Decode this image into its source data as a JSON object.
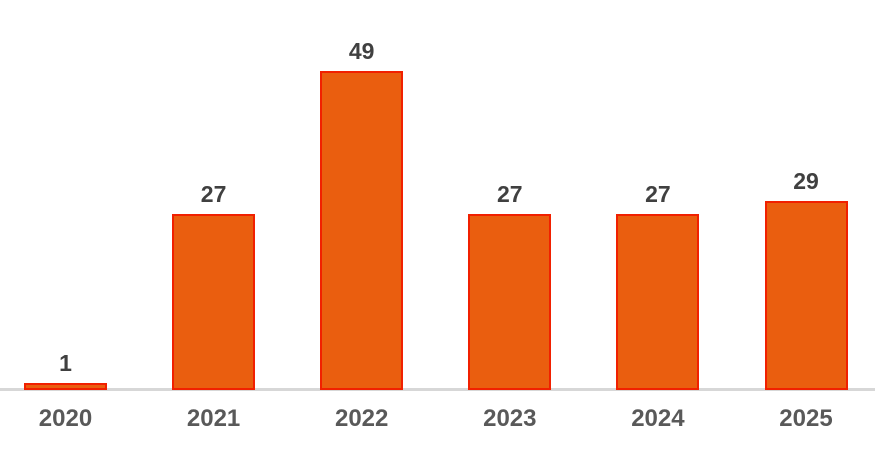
{
  "chart_data": {
    "type": "bar",
    "categories": [
      "2020",
      "2021",
      "2022",
      "2023",
      "2024",
      "2025"
    ],
    "values": [
      1,
      27,
      49,
      27,
      27,
      29
    ],
    "data_labels": [
      "1",
      "27",
      "49",
      "27",
      "27",
      "29"
    ],
    "title": "",
    "xlabel": "",
    "ylabel": "",
    "ylim": [
      0,
      49
    ],
    "grid": false,
    "legend": false,
    "axis": "x-baseline-only"
  },
  "colors": {
    "background": "#FFFFFF",
    "bar_fill": "#EA5E0F",
    "bar_stroke": "#F12000",
    "axis_line": "#D7D7D7",
    "value_label": "#404040",
    "tick_label": "#595959"
  }
}
